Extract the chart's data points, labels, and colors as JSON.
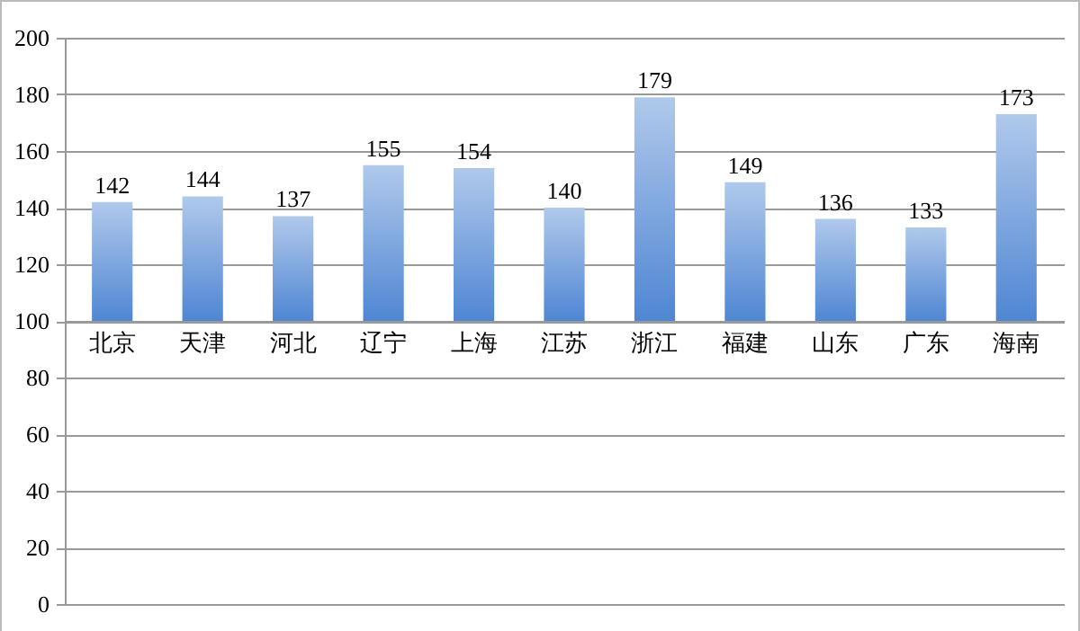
{
  "chart_data": {
    "type": "bar",
    "categories": [
      "北京",
      "天津",
      "河北",
      "辽宁",
      "上海",
      "江苏",
      "浙江",
      "福建",
      "山东",
      "广东",
      "海南"
    ],
    "base": [
      100,
      100,
      100,
      100,
      100,
      100,
      100,
      100,
      100,
      100,
      100
    ],
    "values": [
      42,
      44,
      37,
      55,
      54,
      40,
      79,
      49,
      36,
      33,
      73
    ],
    "value_labels": [
      "142",
      "144",
      "137",
      "155",
      "154",
      "140",
      "179",
      "149",
      "136",
      "133",
      "173"
    ],
    "color": "#4f86d3",
    "ylim": [
      0,
      200
    ],
    "yticks": [
      0,
      20,
      40,
      60,
      80,
      100,
      120,
      140,
      160,
      180,
      200
    ],
    "grid": "y"
  }
}
